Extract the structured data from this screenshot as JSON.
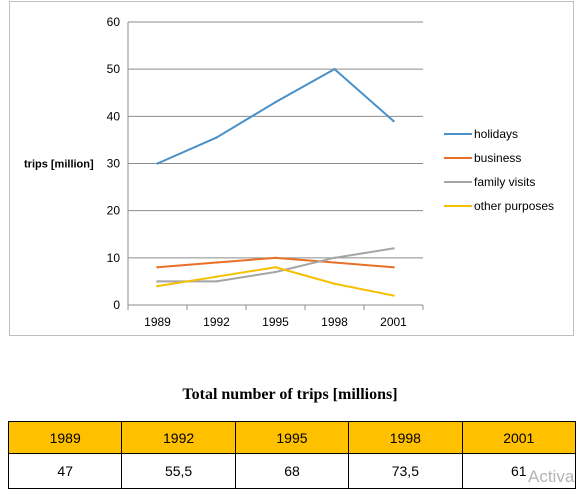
{
  "chart_data": {
    "type": "line",
    "title": "",
    "xlabel": "",
    "ylabel": "trips [million]",
    "ylim": [
      0,
      60
    ],
    "yticks": [
      0,
      10,
      20,
      30,
      40,
      50,
      60
    ],
    "categories": [
      "1989",
      "1992",
      "1995",
      "1998",
      "2001"
    ],
    "grid": true,
    "legend_position": "right",
    "series": [
      {
        "name": "holidays",
        "color": "#4a90c8",
        "values": [
          30,
          35.5,
          43,
          50,
          39
        ]
      },
      {
        "name": "business",
        "color": "#e8712a",
        "values": [
          8,
          9,
          10,
          9,
          8
        ]
      },
      {
        "name": "family visits",
        "color": "#a5a5a5",
        "values": [
          5,
          5,
          7,
          10,
          12
        ]
      },
      {
        "name": "other purposes",
        "color": "#f5c000",
        "values": [
          4,
          6,
          8,
          4.5,
          2
        ]
      }
    ]
  },
  "table": {
    "title": "Total number of trips [millions]",
    "header_color": "#ffc000",
    "years": [
      "1989",
      "1992",
      "1995",
      "1998",
      "2001"
    ],
    "totals": [
      "47",
      "55,5",
      "68",
      "73,5",
      "61"
    ]
  },
  "watermark": "Activa"
}
